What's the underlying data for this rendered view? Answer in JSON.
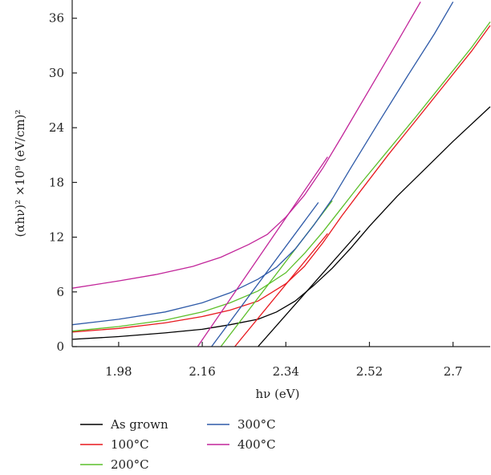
{
  "chart_data": {
    "type": "line",
    "xlabel": "hν (eV)",
    "ylabel": "(αhν)² ×10⁹ (eV/cm)²",
    "xlim": [
      1.88,
      2.78
    ],
    "ylim": [
      0,
      38
    ],
    "xticks": [
      1.98,
      2.16,
      2.34,
      2.52,
      2.7
    ],
    "xtick_labels": [
      "1.98",
      "2.16",
      "2.34",
      "2.52",
      "2.7"
    ],
    "yticks": [
      0,
      6,
      12,
      18,
      24,
      30,
      36
    ],
    "ytick_labels": [
      "0",
      "6",
      "12",
      "18",
      "24",
      "30",
      "36"
    ],
    "legend_placement": "below",
    "series": [
      {
        "name": "As grown",
        "color": "#000000",
        "points": [
          [
            1.88,
            0.8
          ],
          [
            1.98,
            1.1
          ],
          [
            2.08,
            1.5
          ],
          [
            2.16,
            1.9
          ],
          [
            2.22,
            2.4
          ],
          [
            2.28,
            3.0
          ],
          [
            2.32,
            3.8
          ],
          [
            2.36,
            5.0
          ],
          [
            2.4,
            6.7
          ],
          [
            2.44,
            8.6
          ],
          [
            2.48,
            10.8
          ],
          [
            2.52,
            13.2
          ],
          [
            2.58,
            16.5
          ],
          [
            2.64,
            19.5
          ],
          [
            2.7,
            22.5
          ],
          [
            2.78,
            26.3
          ]
        ],
        "tangent": [
          [
            2.28,
            0
          ],
          [
            2.5,
            12.7
          ]
        ]
      },
      {
        "name": "100°C",
        "color": "#e8191f",
        "points": [
          [
            1.88,
            1.6
          ],
          [
            1.98,
            2.0
          ],
          [
            2.08,
            2.6
          ],
          [
            2.16,
            3.3
          ],
          [
            2.22,
            4.0
          ],
          [
            2.28,
            5.0
          ],
          [
            2.34,
            6.9
          ],
          [
            2.38,
            8.8
          ],
          [
            2.42,
            11.4
          ],
          [
            2.46,
            14.3
          ],
          [
            2.5,
            17.0
          ],
          [
            2.56,
            21.0
          ],
          [
            2.62,
            24.8
          ],
          [
            2.68,
            28.6
          ],
          [
            2.74,
            32.4
          ],
          [
            2.78,
            35.2
          ]
        ],
        "tangent": [
          [
            2.23,
            0
          ],
          [
            2.43,
            12.4
          ]
        ]
      },
      {
        "name": "200°C",
        "color": "#5cbf2a",
        "points": [
          [
            1.88,
            1.7
          ],
          [
            1.98,
            2.2
          ],
          [
            2.08,
            2.9
          ],
          [
            2.16,
            3.8
          ],
          [
            2.22,
            4.8
          ],
          [
            2.28,
            6.1
          ],
          [
            2.34,
            8.1
          ],
          [
            2.38,
            10.2
          ],
          [
            2.42,
            12.6
          ],
          [
            2.46,
            15.2
          ],
          [
            2.5,
            17.8
          ],
          [
            2.56,
            21.5
          ],
          [
            2.62,
            25.2
          ],
          [
            2.68,
            29.0
          ],
          [
            2.74,
            32.8
          ],
          [
            2.78,
            35.6
          ]
        ],
        "tangent": [
          [
            2.2,
            0
          ],
          [
            2.44,
            16.0
          ]
        ]
      },
      {
        "name": "300°C",
        "color": "#2e5aa8",
        "points": [
          [
            1.88,
            2.4
          ],
          [
            1.98,
            3.0
          ],
          [
            2.08,
            3.8
          ],
          [
            2.16,
            4.8
          ],
          [
            2.22,
            5.9
          ],
          [
            2.28,
            7.4
          ],
          [
            2.32,
            8.7
          ],
          [
            2.36,
            10.7
          ],
          [
            2.4,
            13.3
          ],
          [
            2.44,
            16.2
          ],
          [
            2.48,
            19.6
          ],
          [
            2.54,
            24.6
          ],
          [
            2.6,
            29.5
          ],
          [
            2.66,
            34.3
          ],
          [
            2.7,
            37.8
          ]
        ],
        "tangent": [
          [
            2.18,
            0
          ],
          [
            2.41,
            15.8
          ]
        ]
      },
      {
        "name": "400°C",
        "color": "#c2259a",
        "points": [
          [
            1.88,
            6.4
          ],
          [
            1.98,
            7.2
          ],
          [
            2.06,
            7.9
          ],
          [
            2.14,
            8.8
          ],
          [
            2.2,
            9.8
          ],
          [
            2.26,
            11.2
          ],
          [
            2.3,
            12.3
          ],
          [
            2.34,
            14.2
          ],
          [
            2.38,
            16.6
          ],
          [
            2.42,
            19.6
          ],
          [
            2.46,
            23.0
          ],
          [
            2.52,
            28.2
          ],
          [
            2.58,
            33.4
          ],
          [
            2.63,
            37.8
          ]
        ],
        "tangent": [
          [
            2.15,
            0
          ],
          [
            2.43,
            20.8
          ]
        ]
      }
    ]
  }
}
